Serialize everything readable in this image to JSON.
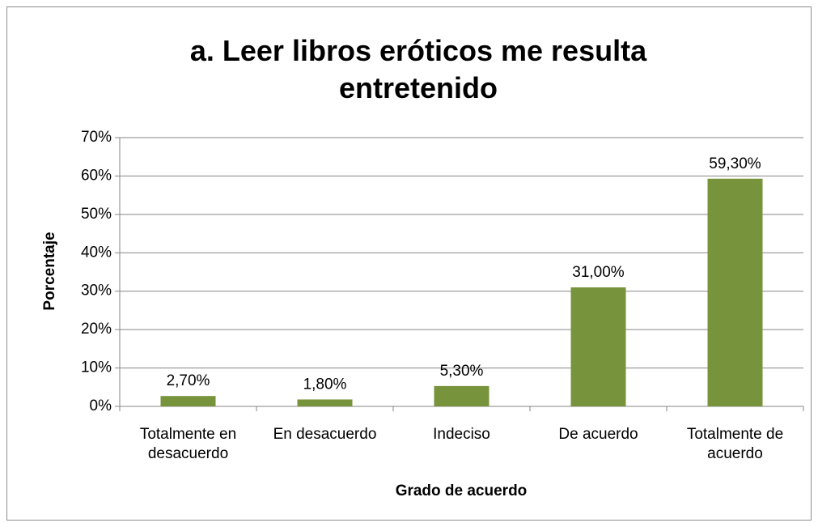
{
  "chart_data": {
    "type": "bar",
    "title": "a. Leer libros eróticos me resulta entretenido",
    "x_label": "Grado de acuerdo",
    "y_label": "Porcentaje",
    "categories": [
      "Totalmente en desacuerdo",
      "En desacuerdo",
      "Indeciso",
      "De acuerdo",
      "Totalmente de acuerdo"
    ],
    "values": [
      2.7,
      1.8,
      5.3,
      31.0,
      59.3
    ],
    "value_labels": [
      "2,70%",
      "1,80%",
      "5,30%",
      "31,00%",
      "59,30%"
    ],
    "color": "#77933c",
    "ylim": [
      0,
      70
    ],
    "yticks": [
      {
        "value": 0,
        "label": "0%"
      },
      {
        "value": 10,
        "label": "10%"
      },
      {
        "value": 20,
        "label": "20%"
      },
      {
        "value": 30,
        "label": "30%"
      },
      {
        "value": 40,
        "label": "40%"
      },
      {
        "value": 50,
        "label": "50%"
      },
      {
        "value": 60,
        "label": "60%"
      },
      {
        "value": 70,
        "label": "70%"
      }
    ],
    "grid": true
  }
}
